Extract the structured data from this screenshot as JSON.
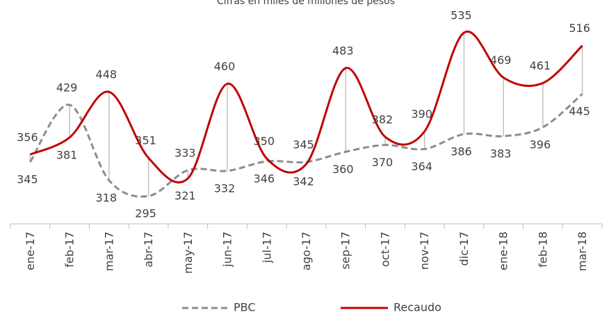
{
  "chart_data": {
    "type": "line",
    "subtitle": "Cifras en miles de millones de pesos",
    "categories": [
      "ene-17",
      "feb-17",
      "mar-17",
      "abr-17",
      "may-17",
      "jun-17",
      "jul-17",
      "ago-17",
      "sep-17",
      "oct-17",
      "nov-17",
      "dic-17",
      "ene-18",
      "feb-18",
      "mar-18"
    ],
    "series": [
      {
        "name": "PBC",
        "color": "#8c8c8c",
        "dash": true,
        "values": [
          345,
          429,
          318,
          295,
          333,
          332,
          346,
          345,
          360,
          370,
          364,
          386,
          383,
          396,
          445
        ]
      },
      {
        "name": "Recaudo",
        "color": "#c00000",
        "dash": false,
        "values": [
          356,
          381,
          448,
          351,
          321,
          460,
          350,
          342,
          483,
          382,
          390,
          535,
          469,
          461,
          516
        ]
      }
    ]
  }
}
